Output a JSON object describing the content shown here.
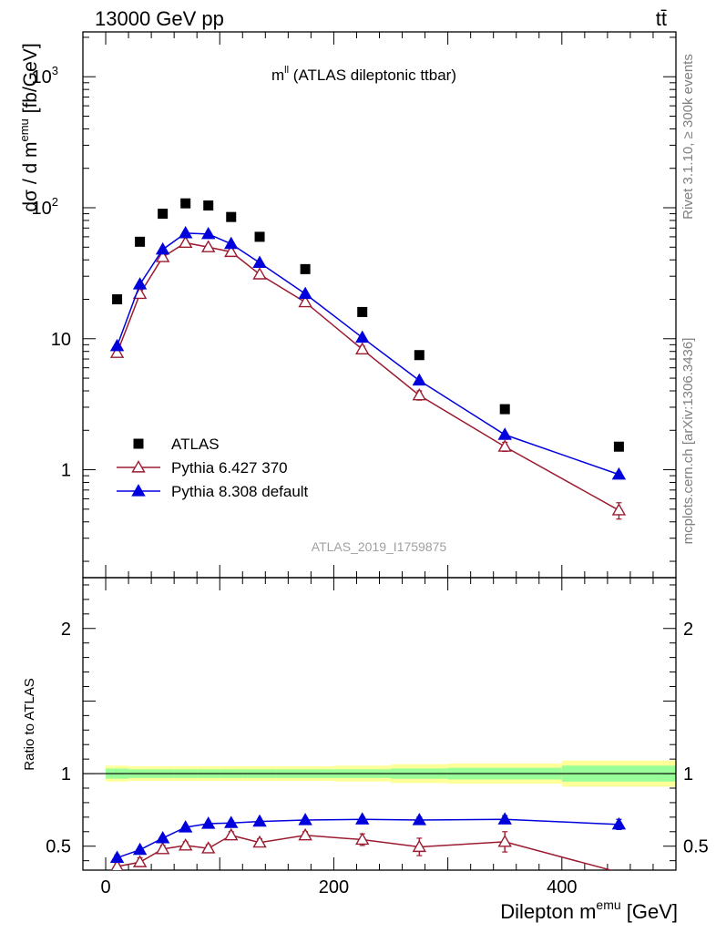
{
  "header": {
    "left": "13000 GeV pp",
    "right": "tt̄"
  },
  "side_labels": {
    "rivet": "Rivet 3.1.10, ≥ 300k events",
    "mcplots": "mcplots.cern.ch [arXiv:1306.3436]"
  },
  "chart_data": [
    {
      "type": "scatter",
      "panel": "main",
      "title": "m^ll (ATLAS dileptonic ttbar)",
      "title_main": "m",
      "title_sup": "ll",
      "title_rest": " (ATLAS dileptonic ttbar)",
      "ylabel": "dσ / d m^emu [fb/GeV]",
      "ylabel_pre": "dσ / d m",
      "ylabel_sup": "emu",
      "ylabel_post": " [fb/GeV]",
      "yscale": "log",
      "ylim": [
        0.15,
        2200
      ],
      "xlim": [
        -20,
        500
      ],
      "yticks": [
        {
          "value": 1000,
          "label": "10",
          "sup": "3"
        },
        {
          "value": 100,
          "label": "10",
          "sup": "2"
        },
        {
          "value": 10,
          "label": "10",
          "sup": ""
        },
        {
          "value": 1,
          "label": "1",
          "sup": ""
        }
      ],
      "watermark": "ATLAS_2019_I1759875",
      "legend_position": "bottom-left",
      "series": [
        {
          "name": "ATLAS",
          "style": "filled-square",
          "color": "#000000",
          "x": [
            10,
            30,
            50,
            70,
            90,
            110,
            135,
            175,
            225,
            275,
            350,
            450
          ],
          "y": [
            20,
            55,
            90,
            108,
            104,
            85,
            60,
            34,
            16,
            7.5,
            2.9,
            1.5
          ]
        },
        {
          "name": "Pythia 6.427 370",
          "style": "open-triangle-line",
          "color": "#9b1b30",
          "x": [
            10,
            30,
            50,
            70,
            90,
            110,
            135,
            175,
            225,
            275,
            350,
            450
          ],
          "y": [
            7.8,
            22,
            42,
            54,
            50,
            46,
            31,
            19,
            8.3,
            3.7,
            1.5,
            0.49
          ],
          "yerr": [
            0.3,
            0.8,
            1.5,
            2,
            2,
            2,
            1.2,
            0.8,
            0.5,
            0.3,
            0.12,
            0.07
          ]
        },
        {
          "name": "Pythia 8.308 default",
          "style": "filled-triangle-line",
          "color": "#0000dd",
          "x": [
            10,
            30,
            50,
            70,
            90,
            110,
            135,
            175,
            225,
            275,
            350,
            450
          ],
          "y": [
            8.8,
            26,
            48,
            64,
            63,
            53,
            38,
            22,
            10.2,
            4.8,
            1.85,
            0.92
          ],
          "yerr": [
            0.2,
            0.5,
            0.8,
            1,
            1,
            1,
            0.7,
            0.4,
            0.2,
            0.12,
            0.05,
            0.04
          ]
        }
      ]
    },
    {
      "type": "scatter",
      "panel": "ratio",
      "ylabel": "Ratio to ATLAS",
      "xlabel": "Dilepton m^emu [GeV]",
      "xlabel_pre": "Dilepton m",
      "xlabel_sup": "emu",
      "xlabel_post": " [GeV]",
      "ylim": [
        0.335,
        2.35
      ],
      "xlim": [
        -20,
        500
      ],
      "xticks": [
        0,
        200,
        400
      ],
      "yticks": [
        0.5,
        1,
        2
      ],
      "bands": {
        "bins": [
          [
            0,
            20
          ],
          [
            20,
            40
          ],
          [
            40,
            60
          ],
          [
            60,
            80
          ],
          [
            80,
            100
          ],
          [
            100,
            120
          ],
          [
            120,
            150
          ],
          [
            150,
            200
          ],
          [
            200,
            250
          ],
          [
            250,
            300
          ],
          [
            300,
            400
          ],
          [
            400,
            500
          ]
        ],
        "inner": [
          0.035,
          0.03,
          0.03,
          0.03,
          0.03,
          0.03,
          0.03,
          0.03,
          0.03,
          0.035,
          0.04,
          0.055
        ],
        "outer": [
          0.055,
          0.05,
          0.05,
          0.05,
          0.05,
          0.05,
          0.05,
          0.05,
          0.055,
          0.065,
          0.07,
          0.09
        ],
        "inner_color": "#99ff99",
        "outer_color": "#ffff99"
      },
      "series": [
        {
          "name": "Pythia 6.427 370",
          "color": "#9b1b30",
          "x": [
            10,
            30,
            50,
            70,
            90,
            110,
            135,
            175,
            225,
            275,
            350,
            450
          ],
          "y": [
            0.36,
            0.39,
            0.48,
            0.505,
            0.485,
            0.575,
            0.525,
            0.575,
            0.545,
            0.495,
            0.53,
            0.32
          ],
          "yerr": [
            0.02,
            0.03,
            0.025,
            0.025,
            0.025,
            0.025,
            0.025,
            0.025,
            0.04,
            0.06,
            0.07,
            0.05
          ]
        },
        {
          "name": "Pythia 8.308 default",
          "color": "#0000dd",
          "x": [
            10,
            30,
            50,
            70,
            90,
            110,
            135,
            175,
            225,
            275,
            350,
            450
          ],
          "y": [
            0.42,
            0.475,
            0.555,
            0.63,
            0.655,
            0.66,
            0.67,
            0.68,
            0.685,
            0.68,
            0.685,
            0.65
          ],
          "yerr": [
            0.02,
            0.012,
            0.012,
            0.012,
            0.012,
            0.012,
            0.012,
            0.012,
            0.015,
            0.02,
            0.025,
            0.035
          ]
        }
      ]
    }
  ]
}
